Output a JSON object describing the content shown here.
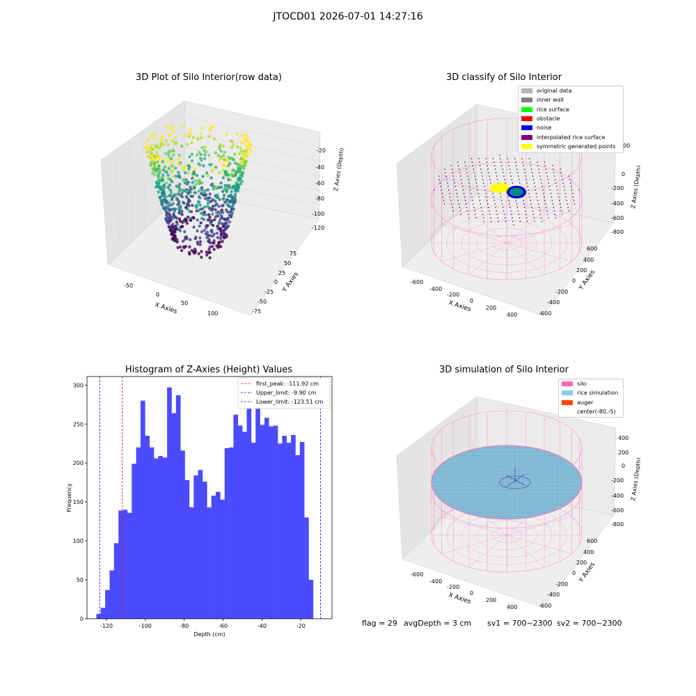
{
  "figure": {
    "suptitle": "JTOCD01 2026-07-01 14:27:16",
    "footer": {
      "flag": "flag = 29",
      "avg_depth": "avgDepth = 3 cm",
      "sv1": "sv1 = 700~2300",
      "sv2": "sv2 = 700~2300"
    }
  },
  "panels": {
    "raw": {
      "title": "3D Plot of Silo Interior(row data)",
      "xlabel": "X Axies",
      "ylabel": "Y Axies",
      "zlabel": "Z Axies (Depth)",
      "x_ticks": [
        "-50",
        "0",
        "50",
        "100"
      ],
      "y_ticks": [
        "75",
        "50",
        "25",
        "0",
        "-25",
        "-50",
        "-75"
      ],
      "z_ticks": [
        "-20",
        "-40",
        "-60",
        "-80",
        "-100",
        "-120"
      ]
    },
    "classify": {
      "title": "3D classify of Silo Interior",
      "xlabel": "X Axies",
      "ylabel": "Y Axies",
      "zlabel": "Z Axies (Depth)",
      "x_ticks": [
        "-600",
        "-400",
        "-200",
        "0",
        "200",
        "400"
      ],
      "y_ticks": [
        "600",
        "400",
        "200",
        "0",
        "-200",
        "-400",
        "-600"
      ],
      "z_ticks": [
        "200",
        "0",
        "-200",
        "-400",
        "-600",
        "-800"
      ],
      "legend": [
        {
          "label": "original data",
          "color": "#b3b3b3"
        },
        {
          "label": "inner wall",
          "color": "#808080"
        },
        {
          "label": "rice surface",
          "color": "#00ff00"
        },
        {
          "label": "obstacle",
          "color": "#ff0000"
        },
        {
          "label": "noise",
          "color": "#0000ff"
        },
        {
          "label": "interpolated rice surface",
          "color": "#800080"
        },
        {
          "label": "symmetric generated points",
          "color": "#ffff00"
        }
      ]
    },
    "simulation": {
      "title": "3D simulation of Silo Interior",
      "xlabel": "X Axies",
      "ylabel": "Y Axies",
      "zlabel": "Z Axies (Depth)",
      "x_ticks": [
        "-600",
        "-400",
        "-200",
        "0",
        "200",
        "400"
      ],
      "y_ticks": [
        "600",
        "400",
        "200",
        "0",
        "-200",
        "-400",
        "-600"
      ],
      "z_ticks": [
        "400",
        "200",
        "0",
        "-200",
        "-400",
        "-600",
        "-800"
      ],
      "legend": [
        {
          "label": "silo",
          "color": "#ff69b4"
        },
        {
          "label": "rice simulation",
          "color": "#87ceeb"
        },
        {
          "label": "auger",
          "color": "#ff4500"
        },
        {
          "label": "center(-80,-5)",
          "color": "#ffffff"
        }
      ]
    }
  },
  "chart_data": {
    "type": "bar",
    "title": "Histogram of Z-Axies (Height) Values",
    "xlabel": "Depth (cm)",
    "ylabel": "Frequency",
    "xlim": [
      -130,
      -4
    ],
    "ylim": [
      0,
      311
    ],
    "x_ticks": [
      -120,
      -100,
      -80,
      -60,
      -40,
      -20
    ],
    "y_ticks": [
      0,
      50,
      100,
      150,
      200,
      250,
      300
    ],
    "bar_color": "#4b4bff",
    "bin_start": -125.2,
    "bin_width": 2.275,
    "values": [
      6,
      14,
      37,
      62,
      97,
      139,
      140,
      136,
      199,
      220,
      280,
      235,
      220,
      206,
      209,
      207,
      297,
      264,
      287,
      216,
      178,
      143,
      184,
      191,
      176,
      143,
      158,
      163,
      153,
      219,
      220,
      262,
      248,
      240,
      282,
      226,
      271,
      249,
      258,
      247,
      248,
      225,
      235,
      226,
      236,
      210,
      227,
      130,
      50
    ],
    "lines": [
      {
        "label": "first_peak: -111.92 cm",
        "value": -111.92,
        "color": "#ff0000"
      },
      {
        "label": "Upper_limit: -9.90 cm",
        "value": -9.9,
        "color": "#0000ff"
      },
      {
        "label": "Lower_limit: -123.51 cm",
        "value": -123.51,
        "color": "#0000ff"
      }
    ],
    "legend_position": "top-right"
  }
}
